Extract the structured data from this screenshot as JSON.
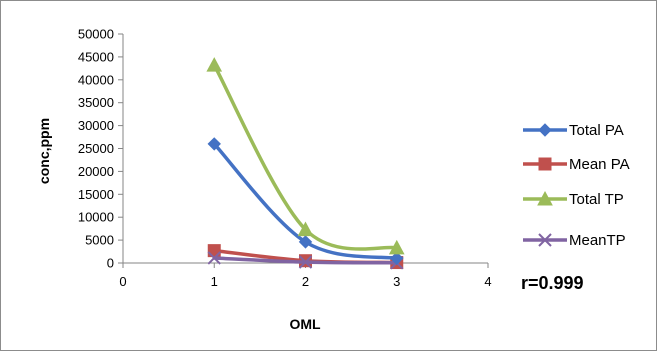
{
  "chart_data": {
    "type": "scatter",
    "xlabel": "OML",
    "ylabel": "conc,ppm",
    "xlim": [
      0,
      4
    ],
    "ylim": [
      0,
      50000
    ],
    "x_ticks": [
      0,
      1,
      2,
      3,
      4
    ],
    "y_ticks": [
      0,
      5000,
      10000,
      15000,
      20000,
      25000,
      30000,
      35000,
      40000,
      45000,
      50000
    ],
    "grid": false,
    "legend_position": "right",
    "annotation": "r=0.999",
    "series": [
      {
        "name": "Total PA",
        "color": "#4472C4",
        "marker": "diamond",
        "x": [
          1,
          2,
          3
        ],
        "y": [
          26000,
          4600,
          1000
        ]
      },
      {
        "name": "Mean PA",
        "color": "#C0504D",
        "marker": "square",
        "x": [
          1,
          2,
          3
        ],
        "y": [
          2700,
          500,
          100
        ]
      },
      {
        "name": "Total TP",
        "color": "#9BBB59",
        "marker": "triangle",
        "x": [
          1,
          2,
          3
        ],
        "y": [
          43200,
          7300,
          3300
        ]
      },
      {
        "name": "MeanTP",
        "color": "#8064A2",
        "marker": "x",
        "x": [
          1,
          2,
          3
        ],
        "y": [
          1100,
          200,
          50
        ]
      }
    ]
  }
}
